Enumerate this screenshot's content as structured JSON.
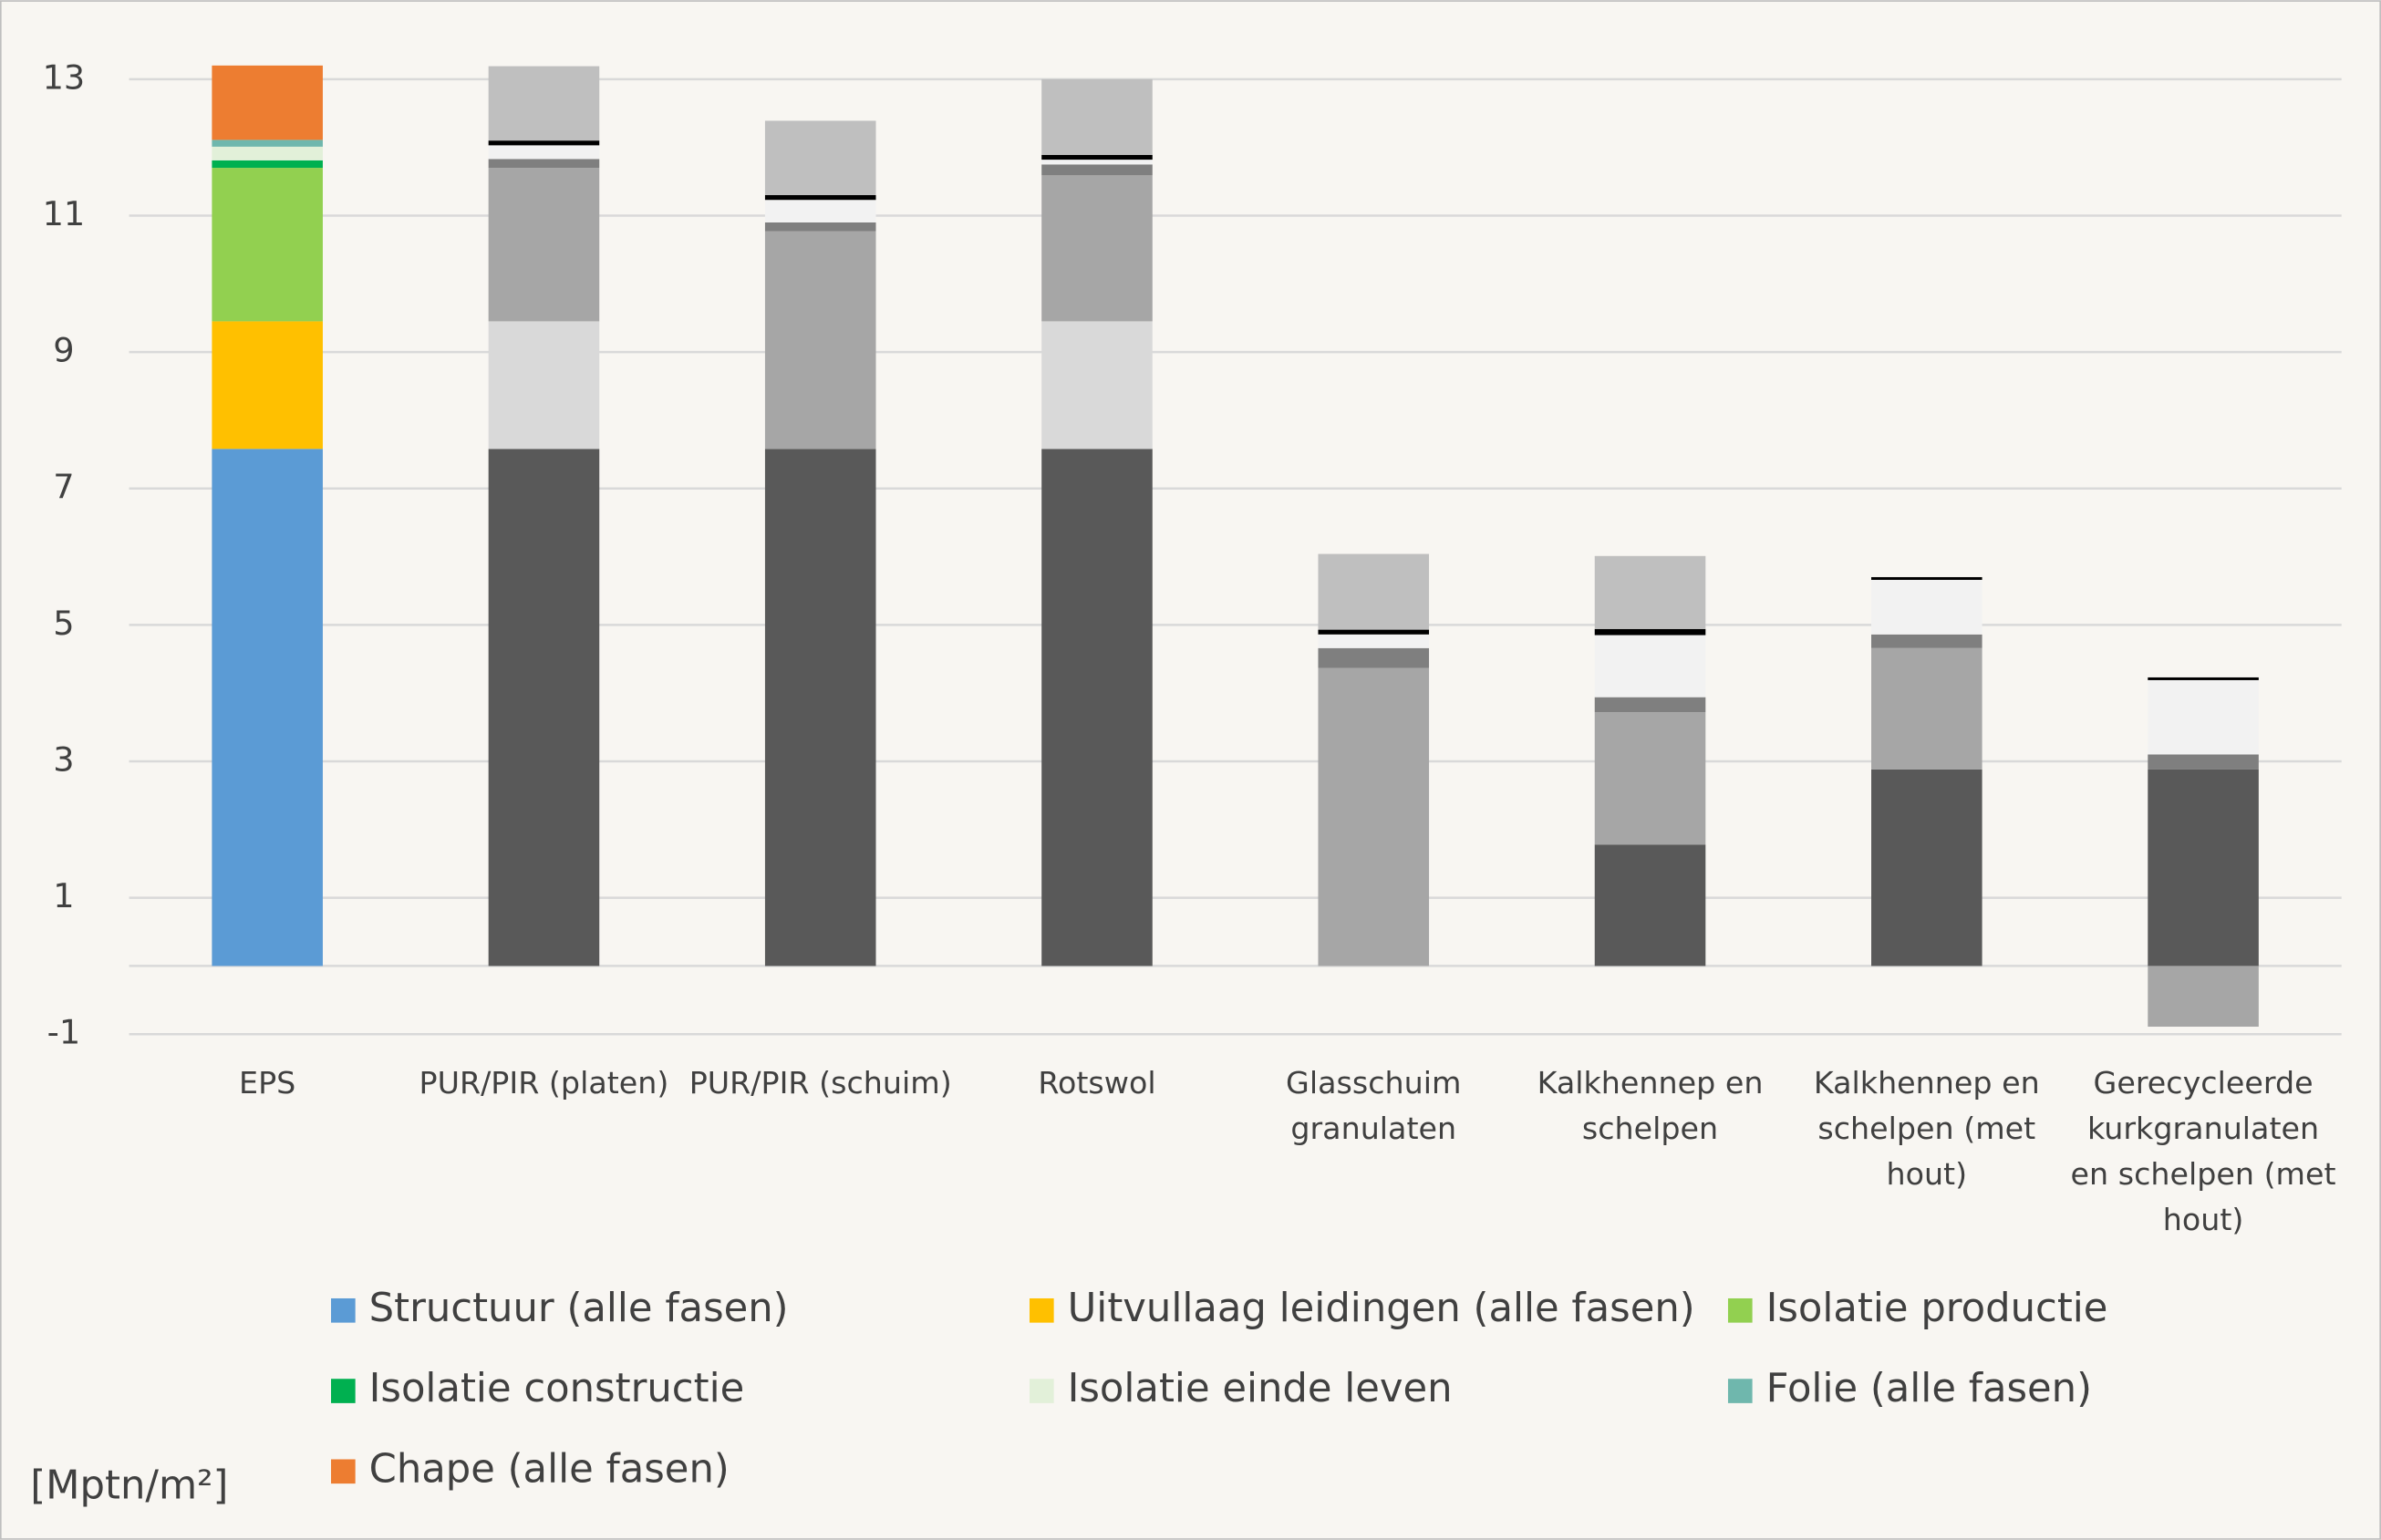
{
  "chart_data": {
    "type": "stacked_bar",
    "categories": [
      "EPS",
      "PUR/PIR (platen)",
      "PUR/PIR (schuim)",
      "Rotswol",
      "Glasschuim granulaten",
      "Kalkhennep en schelpen",
      "Kalkhennep en schelpen (met hout)",
      "Gerecycleerde kurkgranulaten en schelpen (met hout)"
    ],
    "series": [
      {
        "name": "Structuur (alle fasen)",
        "color": "#5b9bd5",
        "colors": [
          "#5b9bd5",
          "#595959",
          "#595959",
          "#595959",
          "#595959",
          "#595959",
          "#595959",
          "#595959"
        ],
        "values": [
          7.58,
          7.58,
          7.58,
          7.58,
          0,
          1.78,
          2.88,
          2.88
        ]
      },
      {
        "name": "Uitvullaag leidingen (alle fasen)",
        "color": "#ffc000",
        "colors": [
          "#ffc000",
          "#d9d9d9",
          "#d9d9d9",
          "#d9d9d9",
          "#d9d9d9",
          "#d9d9d9",
          "#d9d9d9",
          "#d9d9d9"
        ],
        "values": [
          1.87,
          1.87,
          0,
          1.87,
          0,
          0,
          0,
          0
        ]
      },
      {
        "name": "Isolatie productie",
        "color": "#92d050",
        "colors": [
          "#92d050",
          "#a6a6a6",
          "#a6a6a6",
          "#a6a6a6",
          "#a6a6a6",
          "#a6a6a6",
          "#a6a6a6",
          "#a6a6a6"
        ],
        "values": [
          2.25,
          2.25,
          3.19,
          2.14,
          4.37,
          1.94,
          1.78,
          -0.89
        ]
      },
      {
        "name": "Isolatie constructie",
        "color": "#00b050",
        "colors": [
          "#00b050",
          "#7f7f7f",
          "#7f7f7f",
          "#7f7f7f",
          "#7f7f7f",
          "#7f7f7f",
          "#7f7f7f",
          "#7f7f7f"
        ],
        "values": [
          0.11,
          0.13,
          0.13,
          0.16,
          0.29,
          0.22,
          0.2,
          0.22
        ]
      },
      {
        "name": "Isolatie einde leven",
        "color": "#e2f0d9",
        "colors": [
          "#e2f0d9",
          "#f2f2f2",
          "#f2f2f2",
          "#f2f2f2",
          "#f2f2f2",
          "#f2f2f2",
          "#f2f2f2",
          "#f2f2f2"
        ],
        "values": [
          0.2,
          0.2,
          0.33,
          0.07,
          0.2,
          0.91,
          0.8,
          1.09
        ]
      },
      {
        "name": "Folie (alle fasen)",
        "color": "#6fb7ad",
        "colors": [
          "#6fb7ad",
          "#000000",
          "#000000",
          "#000000",
          "#000000",
          "#000000",
          "#000000",
          "#000000"
        ],
        "values": [
          0.1,
          0.07,
          0.07,
          0.07,
          0.07,
          0.09,
          0.04,
          0.04
        ]
      },
      {
        "name": "Chape (alle fasen)",
        "color": "#ed7d31",
        "colors": [
          "#ed7d31",
          "#bfbfbf",
          "#bfbfbf",
          "#bfbfbf",
          "#bfbfbf",
          "#bfbfbf",
          "#bfbfbf",
          "#bfbfbf"
        ],
        "values": [
          1.09,
          1.09,
          1.09,
          1.11,
          1.11,
          1.07,
          0,
          0
        ]
      }
    ],
    "ylabel": "[Mptn/m²]",
    "ylim": [
      -1,
      13.2
    ],
    "yticks": [
      -1,
      1,
      3,
      5,
      7,
      9,
      11,
      13
    ],
    "grid": true
  }
}
